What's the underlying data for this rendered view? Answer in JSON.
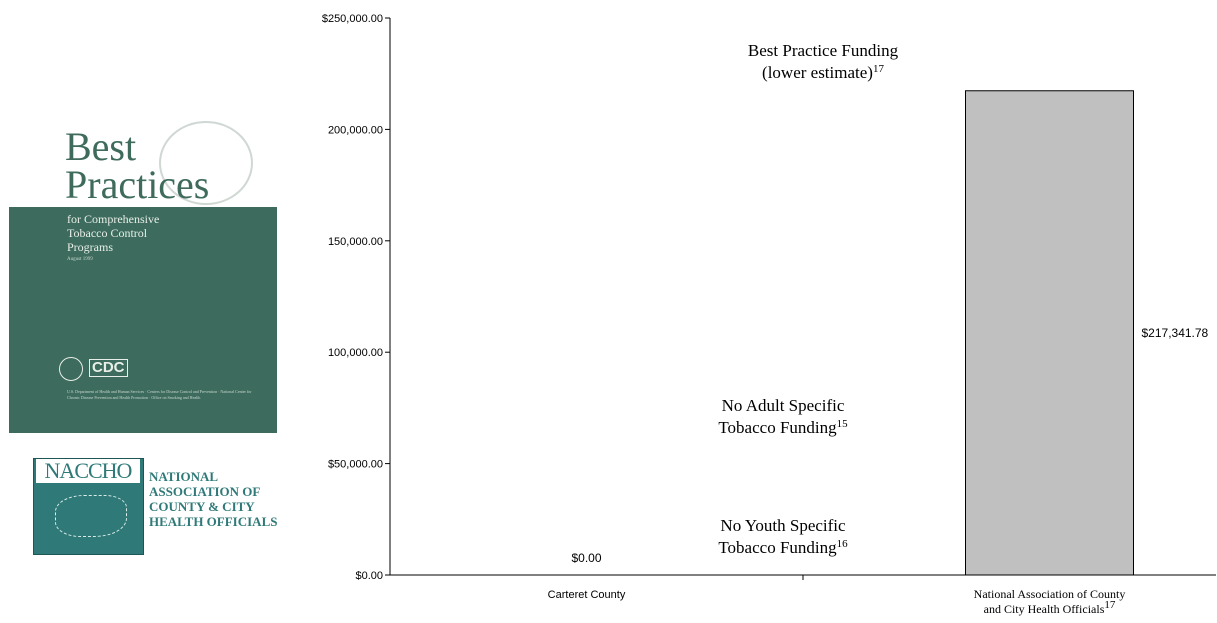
{
  "chart_data": {
    "type": "bar",
    "categories": [
      "Carteret County",
      "National Association of County and City Health Officials"
    ],
    "category_label_lines": [
      [
        "Carteret County"
      ],
      [
        "National Association of County",
        "and City Health Officials"
      ]
    ],
    "category_superscripts": [
      "",
      "17"
    ],
    "values": [
      0.0,
      217341.78
    ],
    "data_labels": [
      "$0.00",
      "$217,341.78"
    ],
    "ylim": [
      0,
      250000
    ],
    "yticks": [
      0,
      50000,
      100000,
      150000,
      200000,
      250000
    ],
    "ytick_labels": [
      "$0.00",
      "$50,000.00",
      "100,000.00",
      "150,000.00",
      "200,000.00",
      "$250,000.00"
    ],
    "grid": false,
    "bar_color": "#c0c0c0",
    "annotations": [
      {
        "lines": [
          "Best Practice Funding",
          "(lower estimate)"
        ],
        "superscript": "17"
      },
      {
        "lines": [
          "No Adult Specific",
          "Tobacco Funding"
        ],
        "superscript": "15"
      },
      {
        "lines": [
          "No Youth Specific",
          "Tobacco Funding"
        ],
        "superscript": "16"
      }
    ]
  },
  "cover": {
    "title_line1": "Best",
    "title_line2": "Practices",
    "subtitle_lines": [
      "for Comprehensive",
      "Tobacco Control",
      "Programs"
    ],
    "date": "August 1999",
    "agency": "CDC",
    "fine_print": "U.S. Department of Health and Human Services · Centers for Disease Control and Prevention · National Center for Chronic Disease Prevention and Health Promotion · Office on Smoking and Health"
  },
  "naccho": {
    "acronym": "NACCHO",
    "lines": [
      "NATIONAL",
      "ASSOCIATION OF",
      "COUNTY & CITY",
      "HEALTH OFFICIALS"
    ]
  }
}
